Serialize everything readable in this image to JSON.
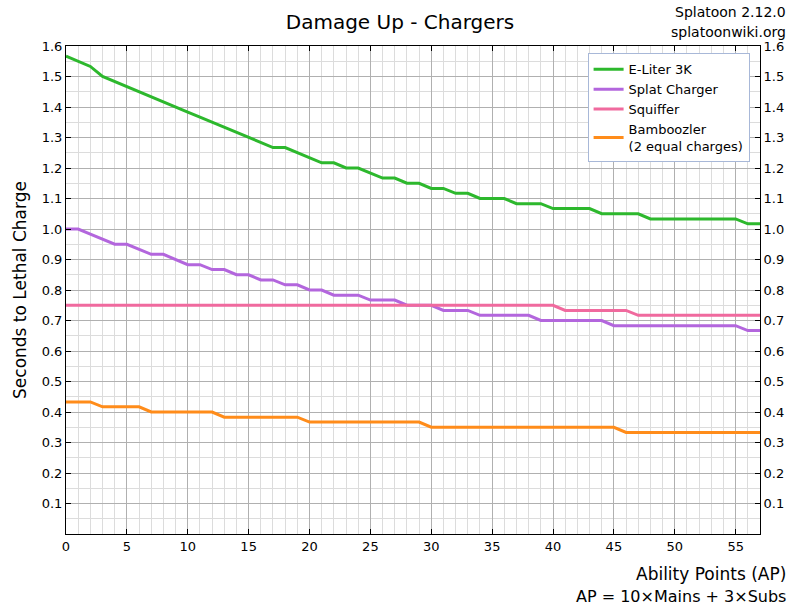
{
  "chart_data": {
    "type": "line",
    "title": "Damage Up - Chargers",
    "notes": [
      "Splatoon 2.12.0",
      "splatoonwiki.org"
    ],
    "x_label": "Ability Points (AP)",
    "y_label": "Seconds to Lethal Charge",
    "annotations": [
      "AP = 10×Mains + 3×Subs"
    ],
    "x": [
      0,
      1,
      2,
      3,
      4,
      5,
      6,
      7,
      8,
      9,
      10,
      11,
      12,
      13,
      14,
      15,
      16,
      17,
      18,
      19,
      20,
      21,
      22,
      23,
      24,
      25,
      26,
      27,
      28,
      29,
      30,
      31,
      32,
      33,
      34,
      35,
      36,
      37,
      38,
      39,
      40,
      41,
      42,
      43,
      44,
      45,
      46,
      47,
      48,
      49,
      50,
      51,
      52,
      53,
      54,
      55,
      56,
      57
    ],
    "series": [
      {
        "name": "E-Liter 3K",
        "color": "#2db82d",
        "values": [
          1.567,
          1.55,
          1.533,
          1.5,
          1.483,
          1.467,
          1.45,
          1.433,
          1.417,
          1.4,
          1.383,
          1.367,
          1.35,
          1.333,
          1.317,
          1.3,
          1.283,
          1.267,
          1.267,
          1.25,
          1.233,
          1.217,
          1.217,
          1.2,
          1.2,
          1.183,
          1.167,
          1.167,
          1.15,
          1.15,
          1.133,
          1.133,
          1.117,
          1.117,
          1.1,
          1.1,
          1.1,
          1.083,
          1.083,
          1.083,
          1.067,
          1.067,
          1.067,
          1.067,
          1.05,
          1.05,
          1.05,
          1.05,
          1.033,
          1.033,
          1.033,
          1.033,
          1.033,
          1.033,
          1.033,
          1.033,
          1.017,
          1.017
        ]
      },
      {
        "name": "Splat Charger",
        "color": "#b366dd",
        "values": [
          1.0,
          1.0,
          0.983,
          0.967,
          0.95,
          0.95,
          0.933,
          0.917,
          0.917,
          0.9,
          0.883,
          0.883,
          0.867,
          0.867,
          0.85,
          0.85,
          0.833,
          0.833,
          0.817,
          0.817,
          0.8,
          0.8,
          0.783,
          0.783,
          0.783,
          0.767,
          0.767,
          0.767,
          0.75,
          0.75,
          0.75,
          0.733,
          0.733,
          0.733,
          0.717,
          0.717,
          0.717,
          0.717,
          0.717,
          0.7,
          0.7,
          0.7,
          0.7,
          0.7,
          0.7,
          0.683,
          0.683,
          0.683,
          0.683,
          0.683,
          0.683,
          0.683,
          0.683,
          0.683,
          0.683,
          0.683,
          0.667,
          0.667
        ]
      },
      {
        "name": "Squiffer",
        "color": "#f06a9e",
        "values": [
          0.75,
          0.75,
          0.75,
          0.75,
          0.75,
          0.75,
          0.75,
          0.75,
          0.75,
          0.75,
          0.75,
          0.75,
          0.75,
          0.75,
          0.75,
          0.75,
          0.75,
          0.75,
          0.75,
          0.75,
          0.75,
          0.75,
          0.75,
          0.75,
          0.75,
          0.75,
          0.75,
          0.75,
          0.75,
          0.75,
          0.75,
          0.75,
          0.75,
          0.75,
          0.75,
          0.75,
          0.75,
          0.75,
          0.75,
          0.75,
          0.75,
          0.733,
          0.733,
          0.733,
          0.733,
          0.733,
          0.733,
          0.717,
          0.717,
          0.717,
          0.717,
          0.717,
          0.717,
          0.717,
          0.717,
          0.717,
          0.717,
          0.717
        ]
      },
      {
        "name": "Bamboozler\n(2 equal charges)",
        "color": "#ff8c1a",
        "values": [
          0.433,
          0.433,
          0.433,
          0.417,
          0.417,
          0.417,
          0.417,
          0.4,
          0.4,
          0.4,
          0.4,
          0.4,
          0.4,
          0.383,
          0.383,
          0.383,
          0.383,
          0.383,
          0.383,
          0.383,
          0.367,
          0.367,
          0.367,
          0.367,
          0.367,
          0.367,
          0.367,
          0.367,
          0.367,
          0.367,
          0.35,
          0.35,
          0.35,
          0.35,
          0.35,
          0.35,
          0.35,
          0.35,
          0.35,
          0.35,
          0.35,
          0.35,
          0.35,
          0.35,
          0.35,
          0.35,
          0.333,
          0.333,
          0.333,
          0.333,
          0.333,
          0.333,
          0.333,
          0.333,
          0.333,
          0.333,
          0.333,
          0.333
        ]
      }
    ],
    "xlim": [
      0,
      57
    ],
    "xticks": [
      0,
      5,
      10,
      15,
      20,
      25,
      30,
      35,
      40,
      45,
      50,
      55
    ],
    "ylim": [
      0,
      1.6
    ],
    "yticks": [
      0.1,
      0.2,
      0.3,
      0.4,
      0.5,
      0.6,
      0.7,
      0.8,
      0.9,
      {
        "value": 1,
        "label": "1.0"
      },
      1.1,
      1.2,
      1.3,
      1.4,
      1.5,
      1.6
    ],
    "grid": true,
    "legend": "upper right"
  }
}
